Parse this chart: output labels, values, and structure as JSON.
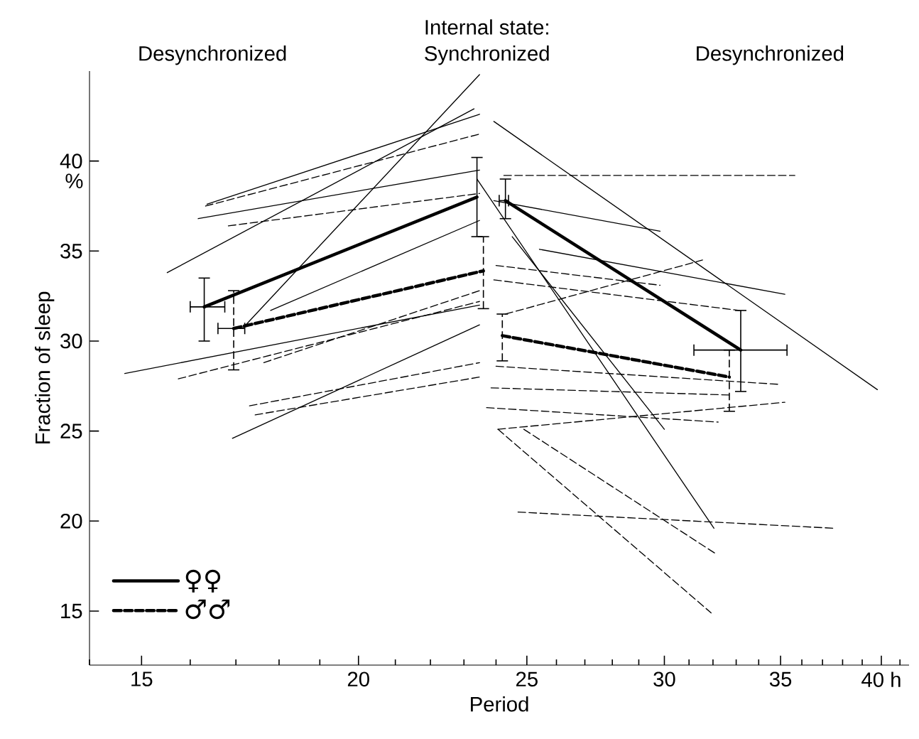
{
  "chart_data": {
    "type": "line",
    "log": "x",
    "xlabel": "Period",
    "ylabel": "Fraction of sleep",
    "annotations": [
      "Desynchronized",
      "Internal state:",
      "Synchronized",
      "Desynchronized",
      "%"
    ],
    "xlim": [
      14,
      41.5
    ],
    "ylim": [
      12,
      45
    ],
    "xticks": [
      {
        "value": 14,
        "label": null
      },
      15,
      {
        "value": 16,
        "label": null
      },
      {
        "value": 17,
        "label": null
      },
      {
        "value": 18,
        "label": null
      },
      {
        "value": 19,
        "label": null
      },
      20,
      {
        "value": 21,
        "label": null
      },
      {
        "value": 22,
        "label": null
      },
      {
        "value": 23,
        "label": null
      },
      {
        "value": 24,
        "label": null
      },
      25,
      {
        "value": 26,
        "label": null
      },
      {
        "value": 27,
        "label": null
      },
      {
        "value": 28,
        "label": null
      },
      {
        "value": 29,
        "label": null
      },
      30,
      {
        "value": 31,
        "label": null
      },
      {
        "value": 32,
        "label": null
      },
      {
        "value": 33,
        "label": null
      },
      {
        "value": 34,
        "label": null
      },
      35,
      {
        "value": 36,
        "label": null
      },
      {
        "value": 37,
        "label": null
      },
      {
        "value": 38,
        "label": null
      },
      {
        "value": 39,
        "label": null
      },
      {
        "value": 40,
        "label": "40 h"
      },
      {
        "value": 41,
        "label": null
      }
    ],
    "yticks": [
      15,
      20,
      25,
      30,
      35,
      40
    ],
    "grid": false,
    "legend": "bottom left",
    "series": [
      {
        "name": "♀♀",
        "color": "#000000",
        "line_style": "solid",
        "x": [
          16.3,
          23.4
        ],
        "values": [
          31.9,
          38.0
        ],
        "errors": [
          [
            30.0,
            33.5
          ],
          [
            35.8,
            40.2
          ]
        ],
        "xerrors": [
          [
            16.0,
            16.75
          ],
          null
        ]
      },
      {
        "color": "#000000",
        "line_style": "solid",
        "x": [
          24.3,
          33.2
        ],
        "values": [
          37.8,
          29.5
        ],
        "errors": [
          [
            36.8,
            39.0
          ],
          [
            27.2,
            31.7
          ]
        ],
        "xerrors": [
          [
            24.1,
            24.4
          ],
          [
            31.2,
            35.3
          ]
        ]
      },
      {
        "name": "♂♂",
        "color": "#000000",
        "line_style": "dashed",
        "x": [
          16.95,
          23.6
        ],
        "values": [
          30.7,
          33.9
        ],
        "errors": [
          [
            28.4,
            32.8
          ],
          [
            31.8,
            35.8
          ]
        ],
        "xerrors": [
          [
            16.6,
            17.2
          ],
          null
        ]
      },
      {
        "color": "#000000",
        "line_style": "dashed",
        "x": [
          24.2,
          32.7
        ],
        "values": [
          30.3,
          28.0
        ],
        "errors": [
          [
            28.9,
            31.5
          ],
          [
            26.1,
            29.5
          ]
        ]
      },
      {
        "color": "#000000",
        "line_style": "solid",
        "x": [
          15.52,
          23.31
        ],
        "values": [
          33.8,
          42.9
        ]
      },
      {
        "color": "#000000",
        "line_style": "solid",
        "x": [
          16.36,
          23.48
        ],
        "values": [
          37.6,
          42.6
        ]
      },
      {
        "color": "#000000",
        "line_style": "solid",
        "x": [
          16.17,
          23.48
        ],
        "values": [
          36.8,
          39.5
        ]
      },
      {
        "color": "#000000",
        "line_style": "solid",
        "x": [
          14.67,
          23.48
        ],
        "values": [
          28.2,
          32.0
        ]
      },
      {
        "color": "#000000",
        "line_style": "solid",
        "x": [
          17.8,
          23.48
        ],
        "values": [
          31.7,
          36.7
        ]
      },
      {
        "color": "#000000",
        "line_style": "solid",
        "x": [
          16.92,
          23.48
        ],
        "values": [
          24.6,
          30.9
        ]
      },
      {
        "color": "#000000",
        "line_style": "solid",
        "x": [
          17.15,
          23.48
        ],
        "values": [
          30.7,
          44.8
        ]
      },
      {
        "color": "#000000",
        "line_style": "dashed",
        "x": [
          16.33,
          23.48
        ],
        "values": [
          37.5,
          41.5
        ]
      },
      {
        "color": "#000000",
        "line_style": "dashed",
        "x": [
          16.83,
          23.48
        ],
        "values": [
          36.4,
          38.2
        ]
      },
      {
        "color": "#000000",
        "line_style": "dashed",
        "x": [
          15.75,
          23.48
        ],
        "values": [
          27.9,
          32.2
        ]
      },
      {
        "color": "#000000",
        "line_style": "dashed",
        "x": [
          17.64,
          23.48
        ],
        "values": [
          28.8,
          32.8
        ]
      },
      {
        "color": "#000000",
        "line_style": "dashed",
        "x": [
          17.31,
          23.48
        ],
        "values": [
          26.4,
          28.8
        ]
      },
      {
        "color": "#000000",
        "line_style": "dashed",
        "x": [
          17.44,
          23.48
        ],
        "values": [
          25.9,
          28.0
        ]
      },
      {
        "color": "#000000",
        "line_style": "solid",
        "x": [
          23.93,
          39.8
        ],
        "values": [
          42.2,
          27.3
        ]
      },
      {
        "color": "#000000",
        "line_style": "solid",
        "x": [
          23.4,
          32.04
        ],
        "values": [
          39.0,
          19.6
        ]
      },
      {
        "color": "#000000",
        "line_style": "solid",
        "x": [
          24.52,
          30.0
        ],
        "values": [
          35.8,
          25.1
        ]
      },
      {
        "color": "#000000",
        "line_style": "solid",
        "x": [
          25.42,
          35.2
        ],
        "values": [
          35.1,
          32.6
        ]
      },
      {
        "color": "#000000",
        "line_style": "solid",
        "x": [
          23.93,
          29.83
        ],
        "values": [
          37.8,
          36.1
        ]
      },
      {
        "color": "#000000",
        "line_style": "dashed",
        "x": [
          24.25,
          35.67
        ],
        "values": [
          39.2,
          39.2
        ]
      },
      {
        "color": "#000000",
        "line_style": "dashed",
        "x": [
          24.0,
          29.83
        ],
        "values": [
          34.2,
          33.1
        ]
      },
      {
        "color": "#000000",
        "line_style": "dashed",
        "x": [
          24.3,
          31.56
        ],
        "values": [
          31.5,
          34.5
        ]
      },
      {
        "color": "#000000",
        "line_style": "dashed",
        "x": [
          23.93,
          33.14
        ],
        "values": [
          33.4,
          31.7
        ]
      },
      {
        "color": "#000000",
        "line_style": "dashed",
        "x": [
          24.0,
          34.87
        ],
        "values": [
          28.6,
          27.6
        ]
      },
      {
        "color": "#000000",
        "line_style": "dashed",
        "x": [
          23.84,
          32.77
        ],
        "values": [
          27.4,
          27.0
        ]
      },
      {
        "color": "#000000",
        "line_style": "dashed",
        "x": [
          24.06,
          35.2
        ],
        "values": [
          25.1,
          26.6
        ]
      },
      {
        "color": "#000000",
        "line_style": "dashed",
        "x": [
          23.7,
          32.22
        ],
        "values": [
          26.3,
          25.5
        ]
      },
      {
        "color": "#000000",
        "line_style": "dashed",
        "x": [
          24.06,
          31.92
        ],
        "values": [
          25.1,
          14.9
        ]
      },
      {
        "color": "#000000",
        "line_style": "dashed",
        "x": [
          24.9,
          32.1
        ],
        "values": [
          25.1,
          18.2
        ]
      },
      {
        "color": "#000000",
        "line_style": "dashed",
        "x": [
          24.71,
          37.6
        ],
        "values": [
          20.5,
          19.6
        ]
      }
    ]
  }
}
